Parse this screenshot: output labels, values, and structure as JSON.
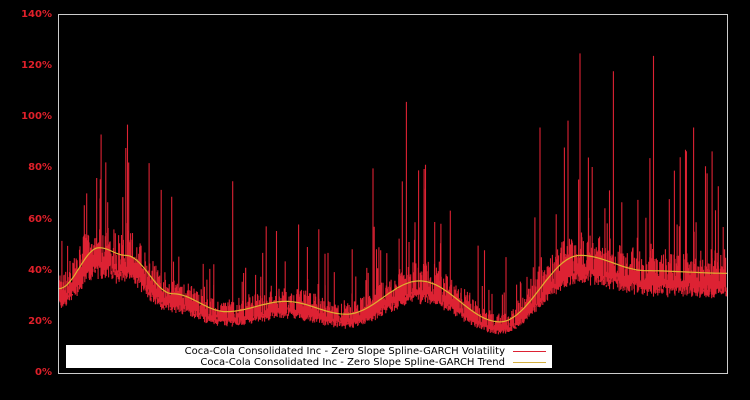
{
  "chart_data": {
    "type": "line",
    "title": "",
    "xlabel": "",
    "ylabel": "",
    "ylim": [
      0,
      140
    ],
    "yticks": [
      "0%",
      "20%",
      "40%",
      "60%",
      "80%",
      "100%",
      "120%",
      "140%"
    ],
    "ytick_values": [
      0,
      20,
      40,
      60,
      80,
      100,
      120,
      140
    ],
    "grid": false,
    "background": "#000000",
    "frame_color": "#cccccc",
    "legend_position": "lower-left inside",
    "series": [
      {
        "name": "Coca-Cola Consolidated Inc - Zero Slope Spline-GARCH Volatility",
        "color": "#dd2233",
        "style": "noisy daily volatility, baseline ~20-40%, spikes to 125%",
        "notable_peaks_pct": [
          {
            "x_frac": 0.1,
            "value": 88
          },
          {
            "x_frac": 0.26,
            "value": 75
          },
          {
            "x_frac": 0.47,
            "value": 80
          },
          {
            "x_frac": 0.52,
            "value": 106
          },
          {
            "x_frac": 0.72,
            "value": 96
          },
          {
            "x_frac": 0.78,
            "value": 125
          },
          {
            "x_frac": 0.83,
            "value": 118
          },
          {
            "x_frac": 0.89,
            "value": 124
          },
          {
            "x_frac": 0.95,
            "value": 96
          }
        ]
      },
      {
        "name": "Coca-Cola Consolidated Inc - Zero Slope Spline-GARCH Trend",
        "color": "#e0b030",
        "style": "smooth spline",
        "points_pct": [
          {
            "x_frac": 0.0,
            "value": 33
          },
          {
            "x_frac": 0.06,
            "value": 49
          },
          {
            "x_frac": 0.1,
            "value": 46
          },
          {
            "x_frac": 0.17,
            "value": 31
          },
          {
            "x_frac": 0.25,
            "value": 24
          },
          {
            "x_frac": 0.34,
            "value": 28
          },
          {
            "x_frac": 0.43,
            "value": 23
          },
          {
            "x_frac": 0.54,
            "value": 36
          },
          {
            "x_frac": 0.66,
            "value": 20
          },
          {
            "x_frac": 0.78,
            "value": 46
          },
          {
            "x_frac": 0.88,
            "value": 40
          },
          {
            "x_frac": 1.0,
            "value": 39
          }
        ]
      }
    ]
  },
  "legend": {
    "volatility_label": "Coca-Cola Consolidated Inc - Zero Slope Spline-GARCH Volatility",
    "trend_label": "Coca-Cola Consolidated Inc - Zero Slope Spline-GARCH Trend"
  }
}
